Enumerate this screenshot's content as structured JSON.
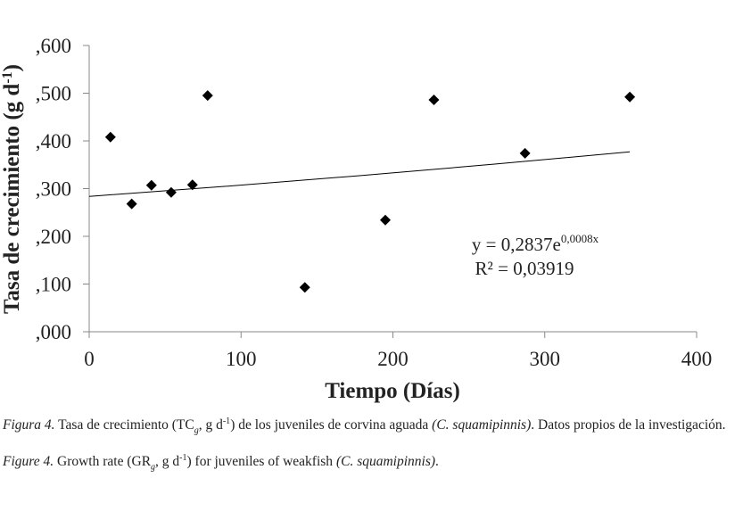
{
  "chart_data": {
    "type": "scatter",
    "y_label": [
      {
        "text": "Tasa de crecimiento (g d",
        "style": "n"
      },
      {
        "text": "-1",
        "style": "sup"
      },
      {
        "text": ")",
        "style": "n"
      }
    ],
    "x_label": "Tiempo (Días)",
    "x": [
      14,
      28,
      41,
      54,
      68,
      78,
      142,
      195,
      227,
      287,
      356
    ],
    "values": [
      0.408,
      0.268,
      0.307,
      0.292,
      0.308,
      0.495,
      0.093,
      0.234,
      0.486,
      0.374,
      0.492
    ],
    "color": "#000000",
    "trendline": {
      "x": [
        0,
        89,
        178,
        267,
        356
      ],
      "values": [
        0.2837,
        0.3046,
        0.3271,
        0.3513,
        0.377
      ],
      "color": "#000000"
    },
    "equation": {
      "base": "y = 0,2837e",
      "exponent": "0,0008x"
    },
    "r_squared": "R² = 0,03919",
    "xlim": [
      0,
      400
    ],
    "xticks": [
      0,
      100,
      200,
      300,
      400
    ],
    "ylim": [
      0,
      0.6
    ],
    "yticks": [
      {
        "value": 0,
        "label": ",000"
      },
      {
        "value": 0.1,
        "label": ",100"
      },
      {
        "value": 0.2,
        "label": ",200"
      },
      {
        "value": 0.3,
        "label": ",300"
      },
      {
        "value": 0.4,
        "label": ",400"
      },
      {
        "value": 0.5,
        "label": ",500"
      },
      {
        "value": 0.6,
        "label": ",600"
      }
    ],
    "grid": false
  },
  "caption": [
    [
      {
        "text": "Figura 4.",
        "style": "i"
      },
      {
        "text": " Tasa de crecimiento (TC",
        "style": "n"
      },
      {
        "text": "g",
        "style": "sub"
      },
      {
        "text": ", g d",
        "style": "n"
      },
      {
        "text": "-1",
        "style": "sup"
      },
      {
        "text": ") de los  juveniles de corvina aguada  ",
        "style": "n"
      },
      {
        "text": "(C. squamipinnis)",
        "style": "i"
      },
      {
        "text": ". Datos propios de la investigación.",
        "style": "n"
      }
    ],
    [
      {
        "text": "Figure 4.",
        "style": "i"
      },
      {
        "text": " Growth rate (GR",
        "style": "n"
      },
      {
        "text": "g",
        "style": "sub"
      },
      {
        "text": ", g d",
        "style": "n"
      },
      {
        "text": "-1",
        "style": "sup"
      },
      {
        "text": ") for juveniles of weakfish ",
        "style": "n"
      },
      {
        "text": "(C. squamipinnis)",
        "style": "i"
      },
      {
        "text": ".",
        "style": "n"
      }
    ]
  ]
}
